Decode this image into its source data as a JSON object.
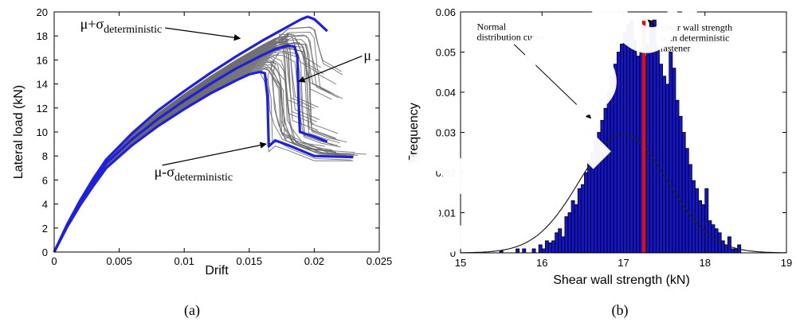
{
  "chart_data": [
    {
      "type": "line",
      "panel_label": "(a)",
      "xlabel": "Drift",
      "ylabel": "Lateral load (kN)",
      "xlim": [
        0,
        0.025
      ],
      "ylim": [
        0,
        20
      ],
      "xticks": [
        "0",
        "0.005",
        "0.01",
        "0.015",
        "0.02",
        "0.025"
      ],
      "xtick_values": [
        0,
        0.005,
        0.01,
        0.015,
        0.02,
        0.025
      ],
      "yticks": [
        "0",
        "2",
        "4",
        "6",
        "8",
        "10",
        "12",
        "14",
        "16",
        "18",
        "20"
      ],
      "ytick_values": [
        0,
        2,
        4,
        6,
        8,
        10,
        12,
        14,
        16,
        18,
        20
      ],
      "annotations": [
        {
          "mu": "μ",
          "sigma": "σ",
          "sign": "+",
          "sub": "deterministic",
          "x": 0.002,
          "y": 18.6,
          "target_x": 0.0143,
          "target_y": 17.8
        },
        {
          "mu": "μ",
          "sigma": "",
          "sign": "",
          "sub": "",
          "x": 0.0238,
          "y": 16.0,
          "target_x": 0.0188,
          "target_y": 14.2
        },
        {
          "mu": "μ",
          "sigma": "σ",
          "sign": "-",
          "sub": "deterministic",
          "x": 0.0077,
          "y": 6.3,
          "target_x": 0.0163,
          "target_y": 9.0
        }
      ],
      "series": [
        {
          "color": "#1f1fe0",
          "x": [
            0,
            0.001,
            0.002,
            0.003,
            0.004,
            0.006,
            0.008,
            0.01,
            0.012,
            0.014,
            0.016,
            0.017,
            0.018,
            0.0185,
            0.019,
            0.0195,
            0.02,
            0.0205,
            0.021
          ],
          "y": [
            0,
            2.3,
            4.3,
            6.1,
            7.7,
            9.9,
            11.8,
            13.4,
            14.9,
            16.3,
            17.6,
            18.2,
            18.8,
            19.1,
            19.4,
            19.6,
            19.4,
            18.9,
            18.4
          ]
        },
        {
          "color": "#1f1fe0",
          "x": [
            0,
            0.001,
            0.002,
            0.003,
            0.004,
            0.006,
            0.008,
            0.01,
            0.012,
            0.014,
            0.016,
            0.017,
            0.018,
            0.0185,
            0.0187,
            0.0188,
            0.0189,
            0.02,
            0.021
          ],
          "y": [
            0,
            2.2,
            4.1,
            5.8,
            7.4,
            9.4,
            11.1,
            12.6,
            14.0,
            15.3,
            16.4,
            16.9,
            17.2,
            17.1,
            16.2,
            12.5,
            10.0,
            9.6,
            9.2
          ]
        },
        {
          "color": "#1f1fe0",
          "x": [
            0,
            0.001,
            0.002,
            0.003,
            0.004,
            0.006,
            0.008,
            0.01,
            0.012,
            0.014,
            0.015,
            0.0158,
            0.0162,
            0.0164,
            0.0165,
            0.017,
            0.018,
            0.02,
            0.023
          ],
          "y": [
            0,
            2.1,
            3.9,
            5.5,
            7.0,
            8.9,
            10.5,
            11.9,
            13.2,
            14.3,
            14.8,
            15.0,
            14.9,
            13.0,
            8.8,
            9.3,
            8.9,
            8.0,
            7.9
          ]
        }
      ]
    },
    {
      "type": "bar",
      "panel_label": "(b)",
      "xlabel": "Shear wall strength (kN)",
      "ylabel": "Frequency",
      "xlim": [
        15,
        19
      ],
      "ylim": [
        0,
        0.06
      ],
      "xticks": [
        "15",
        "16",
        "17",
        "18",
        "19"
      ],
      "xtick_values": [
        15,
        16,
        17,
        18,
        19
      ],
      "yticks": [
        "0",
        "0.01",
        "0.02",
        "0.03",
        "0.04",
        "0.05",
        "0.06"
      ],
      "ytick_values": [
        0,
        0.01,
        0.02,
        0.03,
        0.04,
        0.05,
        0.06
      ],
      "bin_start": 15.48,
      "bin_width": 0.04,
      "values": [
        0.0005,
        0,
        0,
        0,
        0,
        0.001,
        0,
        0.001,
        0,
        0,
        0.001,
        0,
        0.002,
        0.001,
        0.003,
        0.0025,
        0.003,
        0.005,
        0.006,
        0.004,
        0.009,
        0.01,
        0.013,
        0.012,
        0.016,
        0.017,
        0.02,
        0.023,
        0.025,
        0.028,
        0.03,
        0.033,
        0.036,
        0.04,
        0.044,
        0.047,
        0.05,
        0.052,
        0.055,
        0.057,
        0.058,
        0.053,
        0.049,
        0.05,
        0.049,
        0.052,
        0.057,
        0.058,
        0.051,
        0.047,
        0.044,
        0.042,
        0.05,
        0.046,
        0.038,
        0.034,
        0.03,
        0.026,
        0.022,
        0.018,
        0.016,
        0.013,
        0.012,
        0.016,
        0.008,
        0.007,
        0.006,
        0.005,
        0.003,
        0.002,
        0.004,
        0.001,
        0.001,
        0.002
      ],
      "curve": {
        "mean": 17.0,
        "sd": 0.54
      },
      "marker_line": {
        "x": 17.25,
        "color": "#e01010"
      },
      "annotations": [
        {
          "text": "Normal",
          "line2": "distribution curve",
          "x": 15.2,
          "y": 0.0555,
          "target_x": 16.6,
          "target_y": 0.0335
        },
        {
          "text": "shear wall strength",
          "line2": "with deterministic",
          "line3": "fastener",
          "x": 17.45,
          "y": 0.0553,
          "target_x": 17.3,
          "target_y": 0.058
        }
      ],
      "bar_color": "#1414c8"
    }
  ],
  "watermark": {
    "text": "a-pu",
    "color": "#ffffff"
  }
}
